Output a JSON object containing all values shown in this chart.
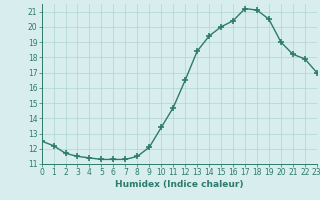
{
  "xlabel": "Humidex (Indice chaleur)",
  "x_values": [
    0,
    1,
    2,
    3,
    4,
    5,
    6,
    7,
    8,
    9,
    10,
    11,
    12,
    13,
    14,
    15,
    16,
    17,
    18,
    19,
    20,
    21,
    22,
    23
  ],
  "y_values": [
    12.5,
    12.2,
    11.7,
    11.5,
    11.4,
    11.3,
    11.3,
    11.3,
    11.5,
    12.1,
    13.4,
    14.7,
    16.5,
    18.4,
    19.4,
    20.0,
    20.4,
    21.2,
    21.1,
    20.5,
    19.0,
    18.2,
    17.9,
    17.0
  ],
  "line_color": "#2d7a6e",
  "marker": "+",
  "marker_size": 4,
  "bg_color": "#d8eeee",
  "grid_color": "#b0d4d4",
  "ylim": [
    11,
    21.5
  ],
  "xlim": [
    0,
    23
  ],
  "yticks": [
    11,
    12,
    13,
    14,
    15,
    16,
    17,
    18,
    19,
    20,
    21
  ],
  "xticks": [
    0,
    1,
    2,
    3,
    4,
    5,
    6,
    7,
    8,
    9,
    10,
    11,
    12,
    13,
    14,
    15,
    16,
    17,
    18,
    19,
    20,
    21,
    22,
    23
  ],
  "tick_label_fontsize": 5.5,
  "xlabel_fontsize": 6.5,
  "tick_color": "#2d7a6e",
  "label_color": "#2d7a6e",
  "spine_color": "#2d7a6e",
  "linewidth": 1.0,
  "marker_linewidth": 1.2
}
